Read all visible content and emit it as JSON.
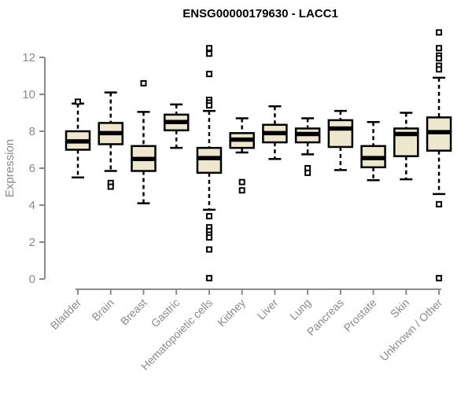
{
  "chart_data": {
    "type": "boxplot",
    "title": "ENSG00000179630 - LACC1",
    "xlabel": "",
    "ylabel": "Expression",
    "ylim": [
      0,
      13.5
    ],
    "yticks": [
      0,
      2,
      4,
      6,
      8,
      10,
      12
    ],
    "grid": false,
    "legend": "none",
    "categories": [
      "Bladder",
      "Brain",
      "Breast",
      "Gastric",
      "Hematopoietic cells",
      "Kidney",
      "Liver",
      "Lung",
      "Pancreas",
      "Prostate",
      "Skin",
      "Unknown / Other"
    ],
    "series": [
      {
        "name": "Bladder",
        "low": 5.5,
        "q1": 7.0,
        "median": 7.45,
        "q3": 8.0,
        "high": 9.5,
        "outliers": [
          9.6
        ]
      },
      {
        "name": "Brain",
        "low": 5.85,
        "q1": 7.3,
        "median": 7.9,
        "q3": 8.45,
        "high": 10.1,
        "outliers": [
          5.2,
          5.0
        ]
      },
      {
        "name": "Breast",
        "low": 4.1,
        "q1": 5.85,
        "median": 6.5,
        "q3": 7.2,
        "high": 9.05,
        "outliers": [
          10.6
        ]
      },
      {
        "name": "Gastric",
        "low": 7.1,
        "q1": 8.05,
        "median": 8.5,
        "q3": 8.9,
        "high": 9.45,
        "outliers": []
      },
      {
        "name": "Hematopoietic cells",
        "low": 3.75,
        "q1": 5.75,
        "median": 6.55,
        "q3": 7.1,
        "high": 9.1,
        "outliers": [
          12.5,
          12.2,
          11.1,
          9.7,
          9.55,
          9.4,
          3.4,
          2.8,
          2.6,
          2.4,
          2.25,
          1.6,
          0.05
        ]
      },
      {
        "name": "Kidney",
        "low": 6.85,
        "q1": 7.1,
        "median": 7.55,
        "q3": 7.9,
        "high": 8.7,
        "outliers": [
          5.25,
          4.8
        ]
      },
      {
        "name": "Liver",
        "low": 6.5,
        "q1": 7.4,
        "median": 7.9,
        "q3": 8.35,
        "high": 9.35,
        "outliers": []
      },
      {
        "name": "Lung",
        "low": 6.75,
        "q1": 7.4,
        "median": 7.85,
        "q3": 8.15,
        "high": 8.7,
        "outliers": [
          6.0,
          5.75
        ]
      },
      {
        "name": "Pancreas",
        "low": 5.9,
        "q1": 7.15,
        "median": 8.15,
        "q3": 8.6,
        "high": 9.1,
        "outliers": []
      },
      {
        "name": "Prostate",
        "low": 5.35,
        "q1": 6.05,
        "median": 6.55,
        "q3": 7.2,
        "high": 8.5,
        "outliers": []
      },
      {
        "name": "Skin",
        "low": 5.4,
        "q1": 6.65,
        "median": 7.85,
        "q3": 8.15,
        "high": 9.0,
        "outliers": []
      },
      {
        "name": "Unknown / Other",
        "low": 4.6,
        "q1": 6.95,
        "median": 7.95,
        "q3": 8.75,
        "high": 10.9,
        "outliers": [
          13.35,
          12.5,
          12.1,
          11.95,
          11.55,
          11.35,
          4.05,
          0.05
        ]
      }
    ],
    "colors": {
      "box_fill": "#ede7cd",
      "box_border": "#000000",
      "median": "#000000",
      "whisker": "#000000",
      "outlier_fill": "#ffffff",
      "outlier_border": "#000000",
      "axis": "#8a8a8a",
      "title": "#000000",
      "background": "#ffffff"
    }
  }
}
